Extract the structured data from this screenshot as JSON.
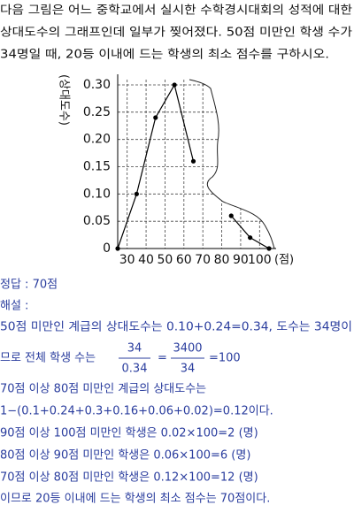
{
  "question": {
    "lines": [
      "다음 그림은 어느 중학교에서 실시한 수학경시대회의 성적에 대한",
      "상대도수의 그래프인데 일부가 찢어졌다. 50점 미만인 학생 수가",
      "34명일 때, 20등 이내에 드는 학생의 최소 점수를 구하시오."
    ]
  },
  "chart_data": {
    "type": "line",
    "y_label": "(상대도수)",
    "x_label": "(점)",
    "x": [
      25,
      35,
      45,
      55,
      65,
      75,
      85,
      95,
      105
    ],
    "series": [
      {
        "color": "#000000",
        "values": [
          0,
          0.1,
          0.24,
          0.3,
          0.16,
          null,
          0.06,
          0.02,
          0
        ]
      }
    ],
    "xlim": [
      25,
      105
    ],
    "xticks": [
      30,
      40,
      50,
      60,
      70,
      80,
      90,
      100
    ],
    "ylim": [
      0,
      0.3
    ],
    "yticks": [
      0,
      0.05,
      {
        "value": 0.1,
        "label": "0.10"
      },
      0.15,
      {
        "value": 0.2,
        "label": "0.20"
      },
      0.25,
      {
        "value": 0.3,
        "label": "0.30"
      }
    ],
    "grid": true
  },
  "solution": {
    "answer": "정답 : 70점",
    "heading": "해설 :",
    "line1": "50점 미만인 계급의 상대도수는 0.10+0.24=0.34, 도수는 34명이",
    "fraction_line": {
      "text": "므로 전체 학생 수는",
      "frac1": {
        "num": "34",
        "den": "0.34"
      },
      "equals": "=",
      "frac2": {
        "num": "3400",
        "den": "34"
      },
      "result": "=100"
    },
    "lines": [
      "70점 이상 80점 미만인 계급의 상대도수는",
      "1−(0.1+0.24+0.3+0.16+0.06+0.02)=0.12이다.",
      "90점 이상 100점 미만인 학생은 0.02×100=2 (명)",
      "80점 이상 90점 미만인 학생은 0.06×100=6 (명)",
      "70점 이상 80점 미만인 학생은 0.12×100=12 (명)",
      "이므로 20등 이내에 드는 학생의 최소 점수는 70점이다."
    ]
  }
}
